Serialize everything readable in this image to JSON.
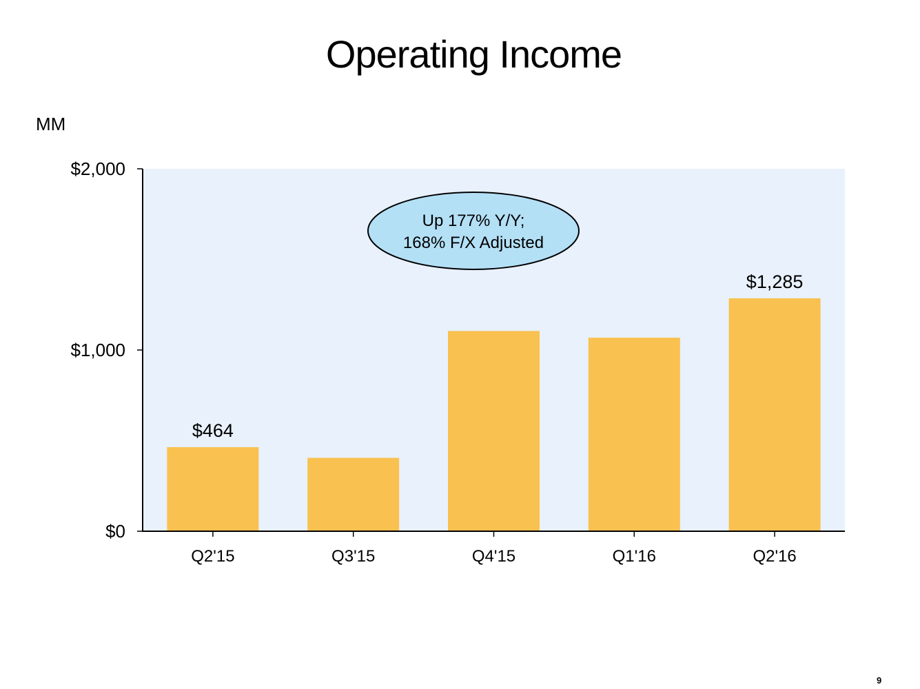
{
  "title": "Operating Income",
  "unit_label": "MM",
  "page_number": "9",
  "colors": {
    "bar": "#F9C14F",
    "plot_background": "#E8F1FC",
    "callout_fill": "#B4E0F6",
    "axis": "#000000"
  },
  "callout": {
    "line1": "Up 177%  Y/Y;",
    "line2": "168% F/X Adjusted"
  },
  "chart_data": {
    "type": "bar",
    "title": "Operating Income",
    "ylabel": "MM",
    "xlabel": "",
    "categories": [
      "Q2'15",
      "Q3'15",
      "Q4'15",
      "Q1'16",
      "Q2'16"
    ],
    "values": [
      464,
      405,
      1105,
      1068,
      1285
    ],
    "ylim": [
      0,
      2000
    ],
    "yticks": [
      0,
      1000,
      2000
    ],
    "ytick_labels": [
      "$0",
      "$1,000",
      "$2,000"
    ],
    "data_labels": [
      {
        "index": 0,
        "text": "$464"
      },
      {
        "index": 4,
        "text": "$1,285"
      }
    ],
    "grid": false,
    "legend": "none"
  }
}
